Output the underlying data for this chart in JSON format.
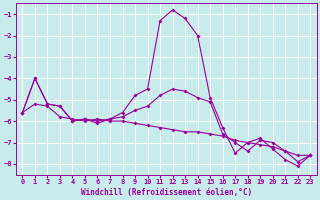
{
  "xlabel": "Windchill (Refroidissement éolien,°C)",
  "bg_color": "#c8ecec",
  "grid_color": "#ffffff",
  "line_color": "#990099",
  "xlim": [
    -0.5,
    23.5
  ],
  "ylim": [
    -8.5,
    -0.5
  ],
  "yticks": [
    -8,
    -7,
    -6,
    -5,
    -4,
    -3,
    -2,
    -1
  ],
  "xticks": [
    0,
    1,
    2,
    3,
    4,
    5,
    6,
    7,
    8,
    9,
    10,
    11,
    12,
    13,
    14,
    15,
    16,
    17,
    18,
    19,
    20,
    21,
    22,
    23
  ],
  "curve1_x": [
    0,
    1,
    2,
    3,
    4,
    5,
    6,
    7,
    8,
    9,
    10,
    11,
    12,
    13,
    14,
    15,
    16,
    17,
    18,
    19,
    20,
    21,
    22,
    23
  ],
  "curve1_y": [
    -5.6,
    -4.0,
    -5.2,
    -5.3,
    -6.0,
    -5.9,
    -6.0,
    -5.9,
    -5.6,
    -4.8,
    -4.5,
    -1.3,
    -0.8,
    -1.2,
    -2.0,
    -4.9,
    -6.3,
    -7.5,
    -7.0,
    -6.8,
    -7.3,
    -7.8,
    -8.1,
    -7.6
  ],
  "curve2_x": [
    0,
    1,
    2,
    3,
    4,
    5,
    6,
    7,
    8,
    9,
    10,
    11,
    12,
    13,
    14,
    15,
    16,
    17,
    18,
    19,
    20,
    21,
    22,
    23
  ],
  "curve2_y": [
    -5.6,
    -5.2,
    -5.3,
    -5.8,
    -5.9,
    -6.0,
    -5.9,
    -6.0,
    -6.0,
    -6.1,
    -6.2,
    -6.3,
    -6.4,
    -6.5,
    -6.5,
    -6.6,
    -6.7,
    -6.9,
    -7.0,
    -7.1,
    -7.2,
    -7.4,
    -7.6,
    -7.6
  ],
  "curve3_x": [
    0,
    1,
    2,
    3,
    4,
    5,
    6,
    7,
    8,
    9,
    10,
    11,
    12,
    13,
    14,
    15,
    16,
    17,
    18,
    19,
    20,
    21,
    22,
    23
  ],
  "curve3_y": [
    -5.6,
    -4.0,
    -5.2,
    -5.3,
    -6.0,
    -5.9,
    -6.1,
    -5.9,
    -5.8,
    -5.5,
    -5.3,
    -4.8,
    -4.5,
    -4.6,
    -4.9,
    -5.1,
    -6.6,
    -7.0,
    -7.4,
    -6.9,
    -7.0,
    -7.4,
    -7.9,
    -7.6
  ],
  "tick_fontsize": 5.0,
  "xlabel_fontsize": 5.5
}
